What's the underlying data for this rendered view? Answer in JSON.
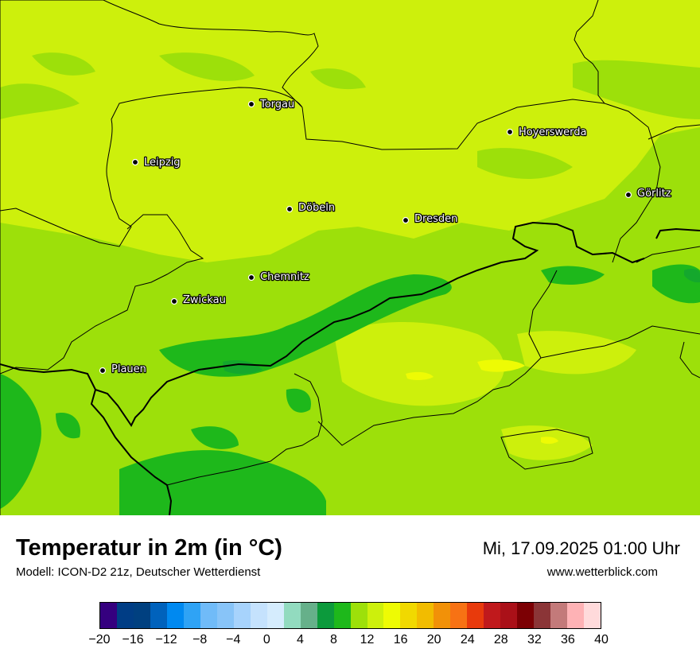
{
  "title": "Temperatur in 2m (in °C)",
  "model": "Modell: ICON-D2 21z, Deutscher Wetterdienst",
  "datetime": "Mi, 17.09.2025 01:00 Uhr",
  "site": "www.wetterblick.com",
  "cities": [
    {
      "name": "Torgau"
    },
    {
      "name": "Hoyerswerda"
    },
    {
      "name": "Leipzig"
    },
    {
      "name": "Görlitz"
    },
    {
      "name": "Döbeln"
    },
    {
      "name": "Dresden"
    },
    {
      "name": "Chemnitz"
    },
    {
      "name": "Zwickau"
    },
    {
      "name": "Plauen"
    }
  ],
  "colorbar": {
    "colors": [
      "#35007f",
      "#003d85",
      "#004080",
      "#0062bc",
      "#0089f0",
      "#2fa3f5",
      "#70bbf8",
      "#88c4f8",
      "#a7d3fc",
      "#c5e2fd",
      "#d5ecfd",
      "#92dbbf",
      "#66b08a",
      "#0c9a3c",
      "#1eb81b",
      "#9de00a",
      "#cdf00c",
      "#eefb04",
      "#f1d900",
      "#f2bc00",
      "#f29108",
      "#f77214",
      "#e83a0c",
      "#c0191c",
      "#aa1018",
      "#7c0004",
      "#8b3537",
      "#c37a7a",
      "#feb2b5",
      "#ffdadb"
    ],
    "tick_labels": [
      "−20",
      "−16",
      "−12",
      "−8",
      "−4",
      "0",
      "4",
      "8",
      "12",
      "16",
      "20",
      "24",
      "28",
      "32",
      "36",
      "40"
    ]
  }
}
